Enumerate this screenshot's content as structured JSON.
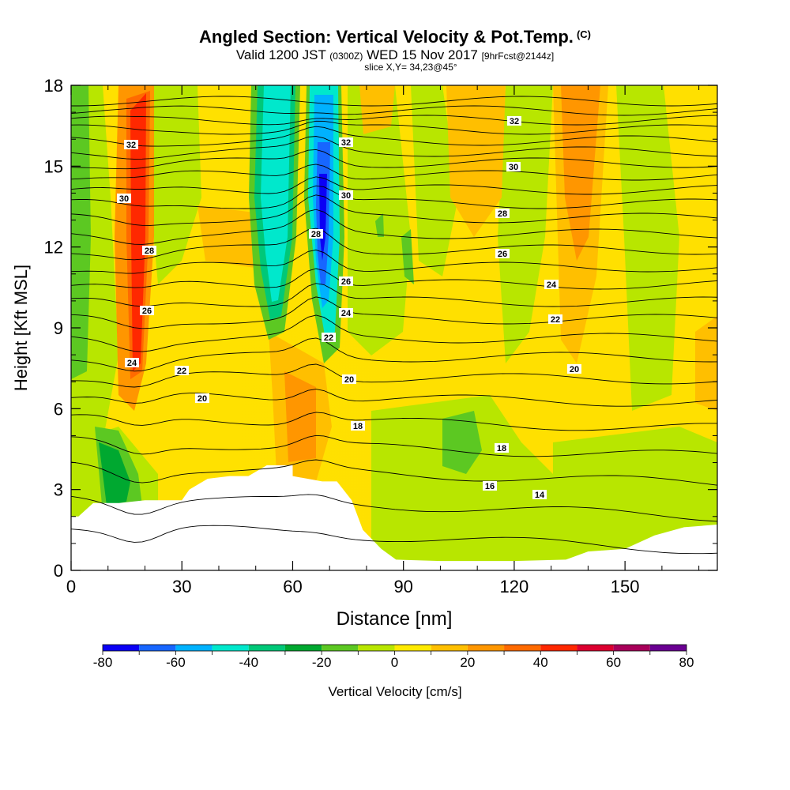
{
  "title": {
    "main": "Angled Section: Vertical Velocity & Pot.Temp.",
    "main_tag": "(C)",
    "valid_a": "Valid 1200 JST",
    "valid_utc": "(0300Z)",
    "valid_b": "WED 15 Nov 2017",
    "fcst": "[9hrFcst@2144z]",
    "slice": "slice X,Y= 34,23@45°"
  },
  "chart_data": {
    "type": "heatmap",
    "xlabel": "Distance [nm]",
    "ylabel": "Height [Kft MSL]",
    "xlim": [
      0,
      175
    ],
    "ylim": [
      0,
      18
    ],
    "x_ticks": [
      "0",
      "30",
      "60",
      "90",
      "120",
      "150"
    ],
    "y_ticks": [
      "0",
      "3",
      "6",
      "9",
      "12",
      "15",
      "18"
    ],
    "colorbar": {
      "label": "Vertical Velocity [cm/s]",
      "ticks": [
        "-80",
        "-60",
        "-40",
        "-20",
        "0",
        "20",
        "40",
        "60",
        "80"
      ],
      "levels": [
        -80,
        -70,
        -60,
        -50,
        -40,
        -30,
        -20,
        -10,
        0,
        10,
        20,
        30,
        40,
        50,
        60,
        70,
        80
      ],
      "colors": [
        "#0b00f5",
        "#1766ff",
        "#00b2ff",
        "#00e8cc",
        "#00c878",
        "#00a830",
        "#5cc822",
        "#b8e600",
        "#ffea00",
        "#ffbf00",
        "#ff9600",
        "#ff6a00",
        "#ff2800",
        "#dc0030",
        "#a8005a",
        "#6a0092"
      ]
    },
    "isentrope_labels": [
      "32",
      "32",
      "32",
      "30",
      "30",
      "30",
      "28",
      "28",
      "28",
      "26",
      "26",
      "26",
      "24",
      "24",
      "24",
      "22",
      "22",
      "22",
      "20",
      "20",
      "20",
      "18",
      "18",
      "16",
      "14"
    ],
    "terrain_kft": [
      [
        0,
        2.0
      ],
      [
        2,
        2.0
      ],
      [
        6,
        2.5
      ],
      [
        13,
        2.5
      ],
      [
        20,
        2.6
      ],
      [
        30,
        2.6
      ],
      [
        32,
        3.0
      ],
      [
        37,
        3.4
      ],
      [
        43,
        3.5
      ],
      [
        48,
        3.5
      ],
      [
        53,
        3.9
      ],
      [
        60,
        3.9
      ],
      [
        60,
        3.5
      ],
      [
        68,
        3.3
      ],
      [
        72,
        3.3
      ],
      [
        76,
        2.6
      ],
      [
        79,
        1.5
      ],
      [
        84,
        0.8
      ],
      [
        88,
        0.4
      ],
      [
        100,
        0.35
      ],
      [
        120,
        0.35
      ],
      [
        134,
        0.4
      ],
      [
        140,
        0.7
      ],
      [
        150,
        0.8
      ],
      [
        158,
        1.3
      ],
      [
        166,
        1.6
      ],
      [
        175,
        1.7
      ]
    ]
  }
}
